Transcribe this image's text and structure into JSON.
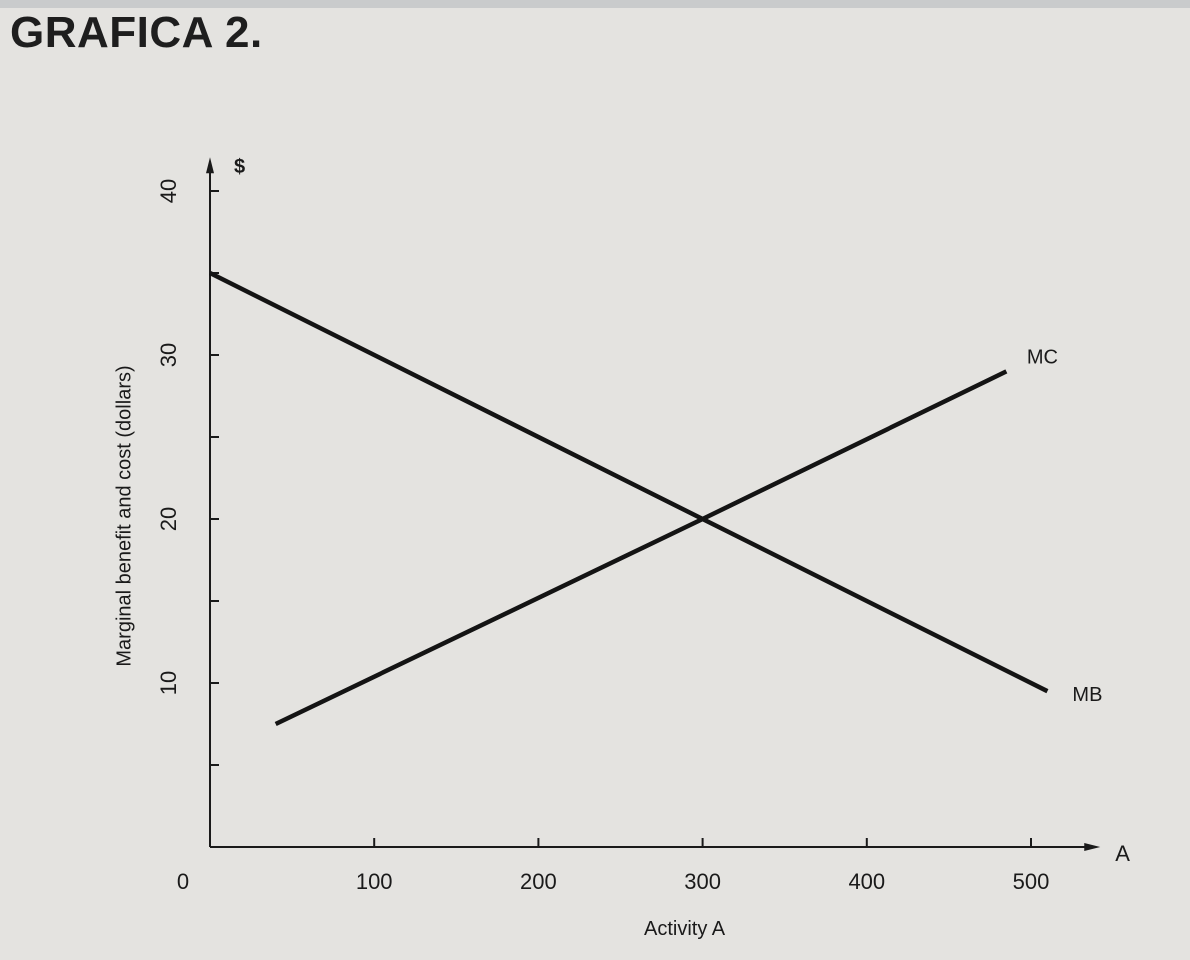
{
  "page": {
    "title": "GRAFICA 2."
  },
  "chart_data": {
    "type": "line",
    "title": "",
    "xlabel": "Activity A",
    "ylabel": "Marginal benefit and cost (dollars)",
    "x_axis_end_label": "A",
    "y_axis_end_label": "$",
    "origin_label": "0",
    "xlim": [
      0,
      530
    ],
    "ylim": [
      0,
      42
    ],
    "x_ticks": [
      {
        "value": 100,
        "label": "100"
      },
      {
        "value": 200,
        "label": "200"
      },
      {
        "value": 300,
        "label": "300"
      },
      {
        "value": 400,
        "label": "400"
      },
      {
        "value": 500,
        "label": "500"
      }
    ],
    "y_ticks": [
      {
        "value": 5,
        "label": ""
      },
      {
        "value": 10,
        "label": "10"
      },
      {
        "value": 15,
        "label": ""
      },
      {
        "value": 20,
        "label": "20"
      },
      {
        "value": 25,
        "label": ""
      },
      {
        "value": 30,
        "label": "30"
      },
      {
        "value": 35,
        "label": ""
      },
      {
        "value": 40,
        "label": "40"
      }
    ],
    "grid": false,
    "legend": "none",
    "series": [
      {
        "name": "MB",
        "x": [
          0,
          300,
          510
        ],
        "y": [
          35,
          20,
          9.5
        ]
      },
      {
        "name": "MC",
        "x": [
          40,
          300,
          485
        ],
        "y": [
          7.5,
          20,
          29
        ]
      }
    ]
  }
}
